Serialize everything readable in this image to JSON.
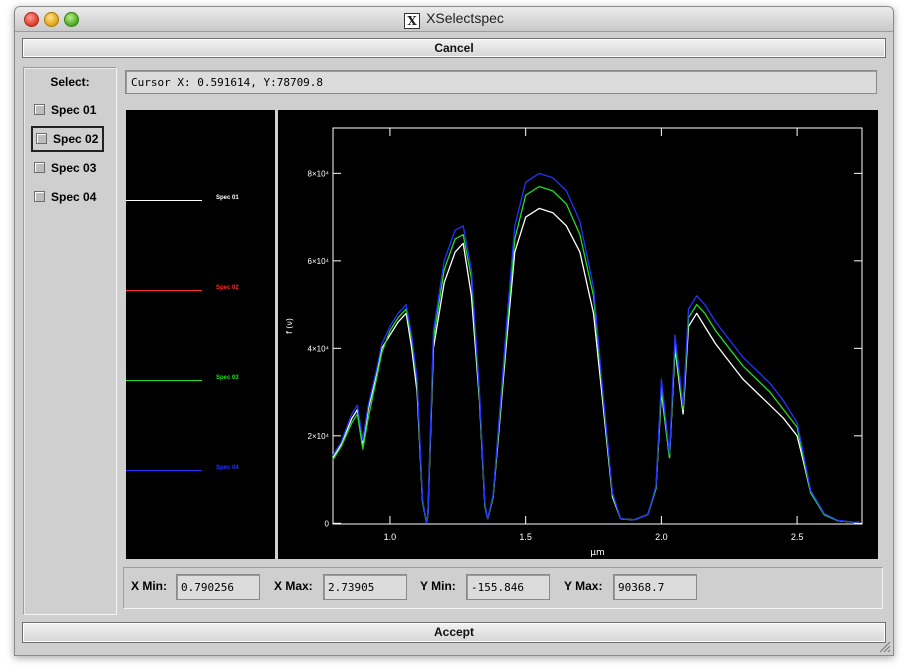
{
  "window": {
    "title": "XSelectspec"
  },
  "buttons": {
    "cancel": "Cancel",
    "accept": "Accept"
  },
  "select": {
    "label": "Select:",
    "items": [
      {
        "label": "Spec 01",
        "checked": false
      },
      {
        "label": "Spec 02",
        "checked": false,
        "focused": true
      },
      {
        "label": "Spec 03",
        "checked": false
      },
      {
        "label": "Spec 04",
        "checked": false
      }
    ]
  },
  "cursor": {
    "text": "Cursor X: 0.591614, Y:78709.8"
  },
  "legend": [
    {
      "label": "Spec 01",
      "color": "#ffffff"
    },
    {
      "label": "Spec 02",
      "color": "#ff2a2a"
    },
    {
      "label": "Spec 03",
      "color": "#22dd22"
    },
    {
      "label": "Spec 04",
      "color": "#2233ff"
    }
  ],
  "ranges": {
    "xmin_label": "X Min:",
    "xmin_value": "0.790256",
    "xmax_label": "X Max:",
    "xmax_value": "2.73905",
    "ymin_label": "Y Min:",
    "ymin_value": "-155.846",
    "ymax_label": "Y Max:",
    "ymax_value": "90368.7"
  },
  "chart_data": {
    "type": "line",
    "xlabel": "μm",
    "ylabel": "f (ν)",
    "xlim": [
      0.790256,
      2.73905
    ],
    "ylim": [
      -155.846,
      90368.7
    ],
    "xticks": [
      1.0,
      1.5,
      2.0,
      2.5
    ],
    "xtick_labels": [
      "1.0",
      "1.5",
      "2.0",
      "2.5"
    ],
    "yticks": [
      0,
      20000,
      40000,
      60000,
      80000
    ],
    "ytick_labels": [
      "0",
      "2×10⁴",
      "4×10⁴",
      "6×10⁴",
      "8×10⁴"
    ],
    "series": [
      {
        "name": "Spec 01",
        "color": "#ffffff",
        "x": [
          0.79,
          0.82,
          0.86,
          0.88,
          0.9,
          0.92,
          0.95,
          0.97,
          1.0,
          1.03,
          1.06,
          1.08,
          1.1,
          1.12,
          1.135,
          1.14,
          1.16,
          1.2,
          1.24,
          1.27,
          1.3,
          1.33,
          1.35,
          1.36,
          1.38,
          1.4,
          1.43,
          1.46,
          1.5,
          1.55,
          1.6,
          1.65,
          1.7,
          1.75,
          1.78,
          1.82,
          1.85,
          1.9,
          1.95,
          1.98,
          2.0,
          2.03,
          2.05,
          2.08,
          2.1,
          2.13,
          2.16,
          2.2,
          2.25,
          2.3,
          2.35,
          2.4,
          2.45,
          2.5,
          2.52,
          2.55,
          2.6,
          2.65,
          2.7,
          2.73
        ],
        "y": [
          15000,
          18000,
          24000,
          26000,
          18000,
          26000,
          34000,
          40000,
          43000,
          46000,
          48000,
          40000,
          30000,
          5000,
          0,
          2000,
          40000,
          55000,
          62000,
          64000,
          52000,
          28000,
          4000,
          1000,
          6000,
          20000,
          42000,
          62000,
          70000,
          72000,
          71000,
          68000,
          62000,
          48000,
          30000,
          6000,
          1000,
          800,
          2000,
          8000,
          30000,
          15000,
          40000,
          25000,
          45000,
          48000,
          45000,
          41000,
          37000,
          33000,
          30000,
          27000,
          24000,
          20000,
          15000,
          7000,
          2000,
          600,
          300,
          200
        ]
      },
      {
        "name": "Spec 03",
        "color": "#22dd22",
        "x": [
          0.79,
          0.82,
          0.86,
          0.88,
          0.9,
          0.92,
          0.95,
          0.97,
          1.0,
          1.03,
          1.06,
          1.08,
          1.1,
          1.12,
          1.135,
          1.14,
          1.16,
          1.2,
          1.24,
          1.27,
          1.3,
          1.33,
          1.35,
          1.36,
          1.38,
          1.4,
          1.43,
          1.46,
          1.5,
          1.55,
          1.6,
          1.65,
          1.7,
          1.75,
          1.78,
          1.82,
          1.85,
          1.9,
          1.95,
          1.98,
          2.0,
          2.03,
          2.05,
          2.08,
          2.1,
          2.13,
          2.16,
          2.2,
          2.25,
          2.3,
          2.35,
          2.4,
          2.45,
          2.5,
          2.52,
          2.55,
          2.6,
          2.65,
          2.7,
          2.73
        ],
        "y": [
          14500,
          17500,
          23000,
          25000,
          17000,
          24000,
          33000,
          39000,
          44000,
          47000,
          49000,
          42000,
          32000,
          5000,
          0,
          2000,
          42000,
          58000,
          65000,
          66000,
          56000,
          29000,
          4000,
          1000,
          6000,
          21000,
          44000,
          65000,
          75000,
          77000,
          76000,
          73000,
          66000,
          52000,
          32000,
          6500,
          1000,
          800,
          2000,
          8000,
          31000,
          15000,
          41000,
          26000,
          47000,
          50000,
          48000,
          44000,
          40000,
          36000,
          33000,
          30000,
          26000,
          22000,
          16000,
          7000,
          2000,
          600,
          300,
          200
        ]
      },
      {
        "name": "Spec 04",
        "color": "#2233ff",
        "x": [
          0.79,
          0.82,
          0.86,
          0.88,
          0.9,
          0.92,
          0.95,
          0.97,
          1.0,
          1.03,
          1.06,
          1.08,
          1.1,
          1.12,
          1.135,
          1.14,
          1.16,
          1.2,
          1.24,
          1.27,
          1.3,
          1.33,
          1.35,
          1.36,
          1.38,
          1.4,
          1.43,
          1.46,
          1.5,
          1.55,
          1.6,
          1.65,
          1.7,
          1.75,
          1.78,
          1.82,
          1.85,
          1.9,
          1.95,
          1.98,
          2.0,
          2.03,
          2.05,
          2.08,
          2.1,
          2.13,
          2.16,
          2.2,
          2.25,
          2.3,
          2.35,
          2.4,
          2.45,
          2.5,
          2.52,
          2.55,
          2.6,
          2.65,
          2.7,
          2.73
        ],
        "y": [
          15500,
          18500,
          25000,
          27000,
          19000,
          27000,
          35000,
          41000,
          45000,
          48000,
          50000,
          43000,
          33000,
          5500,
          0,
          2000,
          44000,
          60000,
          67000,
          68000,
          58000,
          30000,
          4500,
          1000,
          6500,
          22000,
          46000,
          68000,
          78000,
          80000,
          79000,
          76000,
          69000,
          54000,
          33000,
          7000,
          1000,
          800,
          2000,
          8500,
          33000,
          16000,
          43000,
          27000,
          49000,
          52000,
          50000,
          46000,
          42000,
          38000,
          35000,
          32000,
          28000,
          23000,
          17000,
          7500,
          2200,
          700,
          300,
          200
        ]
      }
    ]
  }
}
